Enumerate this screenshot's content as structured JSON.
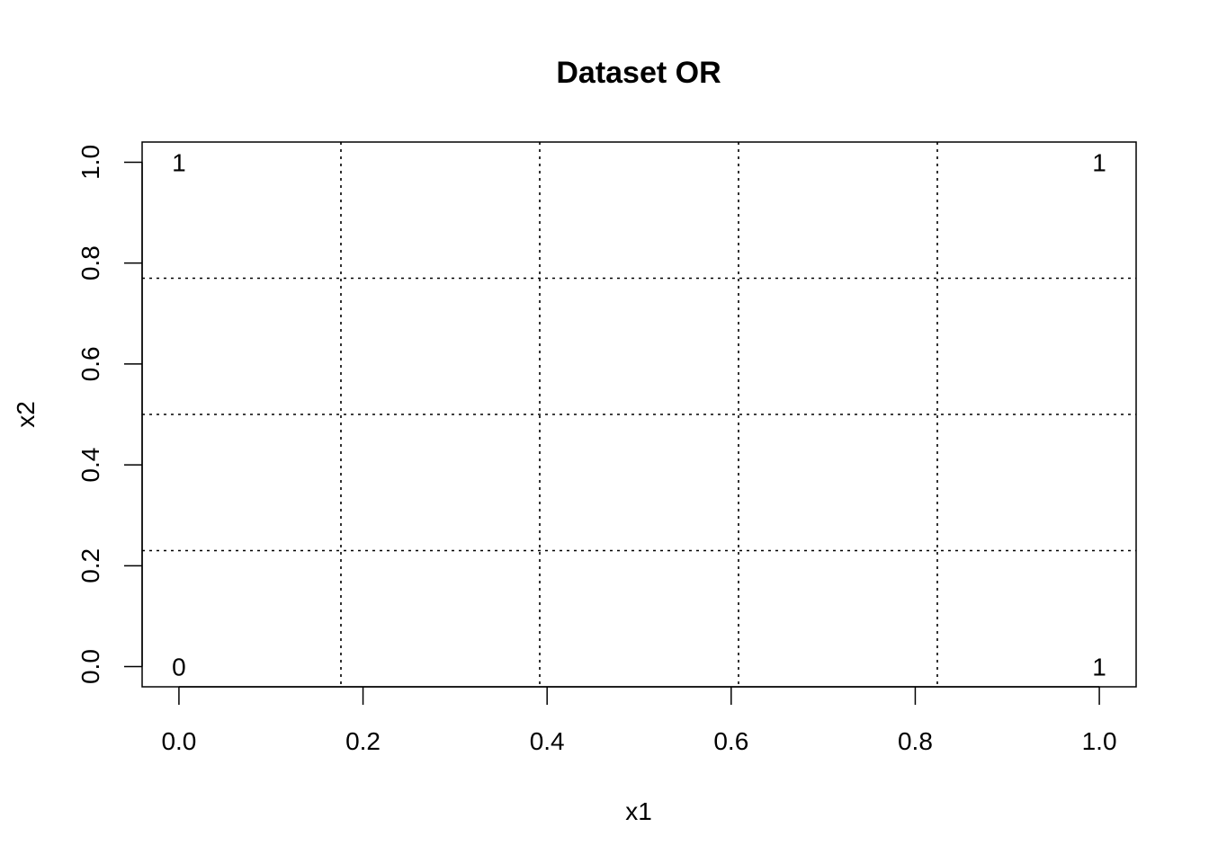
{
  "chart_data": {
    "type": "scatter",
    "title": "Dataset OR",
    "xlabel": "x1",
    "ylabel": "x2",
    "xlim": [
      -0.04,
      1.04
    ],
    "ylim": [
      -0.04,
      1.04
    ],
    "x_ticks": [
      0.0,
      0.2,
      0.4,
      0.6,
      0.8,
      1.0
    ],
    "x_tick_labels": [
      "0.0",
      "0.2",
      "0.4",
      "0.6",
      "0.8",
      "1.0"
    ],
    "y_ticks": [
      0.0,
      0.2,
      0.4,
      0.6,
      0.8,
      1.0
    ],
    "y_tick_labels": [
      "0.0",
      "0.2",
      "0.4",
      "0.6",
      "0.8",
      "1.0"
    ],
    "points": [
      {
        "x": 0,
        "y": 1,
        "label": "1"
      },
      {
        "x": 1,
        "y": 1,
        "label": "1"
      },
      {
        "x": 0,
        "y": 0,
        "label": "0"
      },
      {
        "x": 1,
        "y": 0,
        "label": "1"
      }
    ],
    "vertical_lines_x": [
      0.176,
      0.392,
      0.608,
      0.824
    ],
    "horizontal_lines_y": [
      0.77,
      0.5,
      0.23
    ],
    "line_style": "dotted",
    "grid": false,
    "legend": "none"
  }
}
